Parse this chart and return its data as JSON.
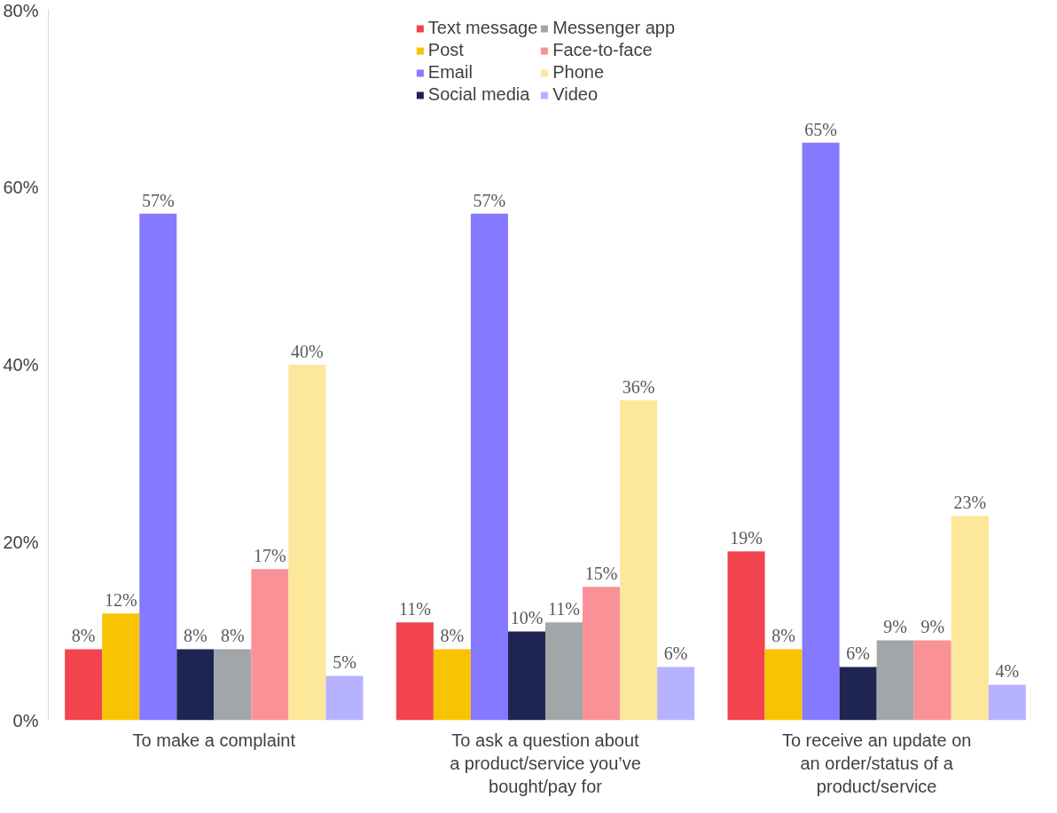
{
  "chart_data": {
    "type": "bar",
    "categories": [
      "To make a complaint",
      "To ask a question about a product/service you’ve bought/pay for",
      "To receive an update on an order/status of a product/service"
    ],
    "series": [
      {
        "name": "Text message",
        "color": "#f2444f",
        "values": [
          8,
          11,
          19
        ],
        "value_labels": [
          "8%",
          "11%",
          "19%"
        ]
      },
      {
        "name": "Post",
        "color": "#f8c300",
        "values": [
          12,
          8,
          8
        ],
        "value_labels": [
          "12%",
          "8%",
          "8%"
        ]
      },
      {
        "name": "Email",
        "color": "#8479ff",
        "values": [
          57,
          57,
          65
        ],
        "value_labels": [
          "57%",
          "57%",
          "65%"
        ]
      },
      {
        "name": "Social media",
        "color": "#1f2552",
        "values": [
          8,
          10,
          6
        ],
        "value_labels": [
          "8%",
          "10%",
          "6%"
        ]
      },
      {
        "name": "Messenger app",
        "color": "#a1a6a8",
        "values": [
          8,
          11,
          9
        ],
        "value_labels": [
          "8%",
          "11%",
          "9%"
        ]
      },
      {
        "name": "Face-to-face",
        "color": "#f99196",
        "values": [
          17,
          15,
          9
        ],
        "value_labels": [
          "17%",
          "15%",
          "9%"
        ]
      },
      {
        "name": "Phone",
        "color": "#fde79a",
        "values": [
          40,
          36,
          23
        ],
        "value_labels": [
          "40%",
          "36%",
          "23%"
        ]
      },
      {
        "name": "Video",
        "color": "#b7b2ff",
        "values": [
          5,
          6,
          4
        ],
        "value_labels": [
          "5%",
          "6%",
          "4%"
        ]
      }
    ],
    "ylim": [
      0,
      80
    ],
    "yticks": [
      {
        "value": 0,
        "label": "0%"
      },
      {
        "value": 20,
        "label": "20%"
      },
      {
        "value": 40,
        "label": "40%"
      },
      {
        "value": 60,
        "label": "60%"
      },
      {
        "value": 80,
        "label": "80%"
      }
    ],
    "grid": false,
    "legend": "top"
  }
}
